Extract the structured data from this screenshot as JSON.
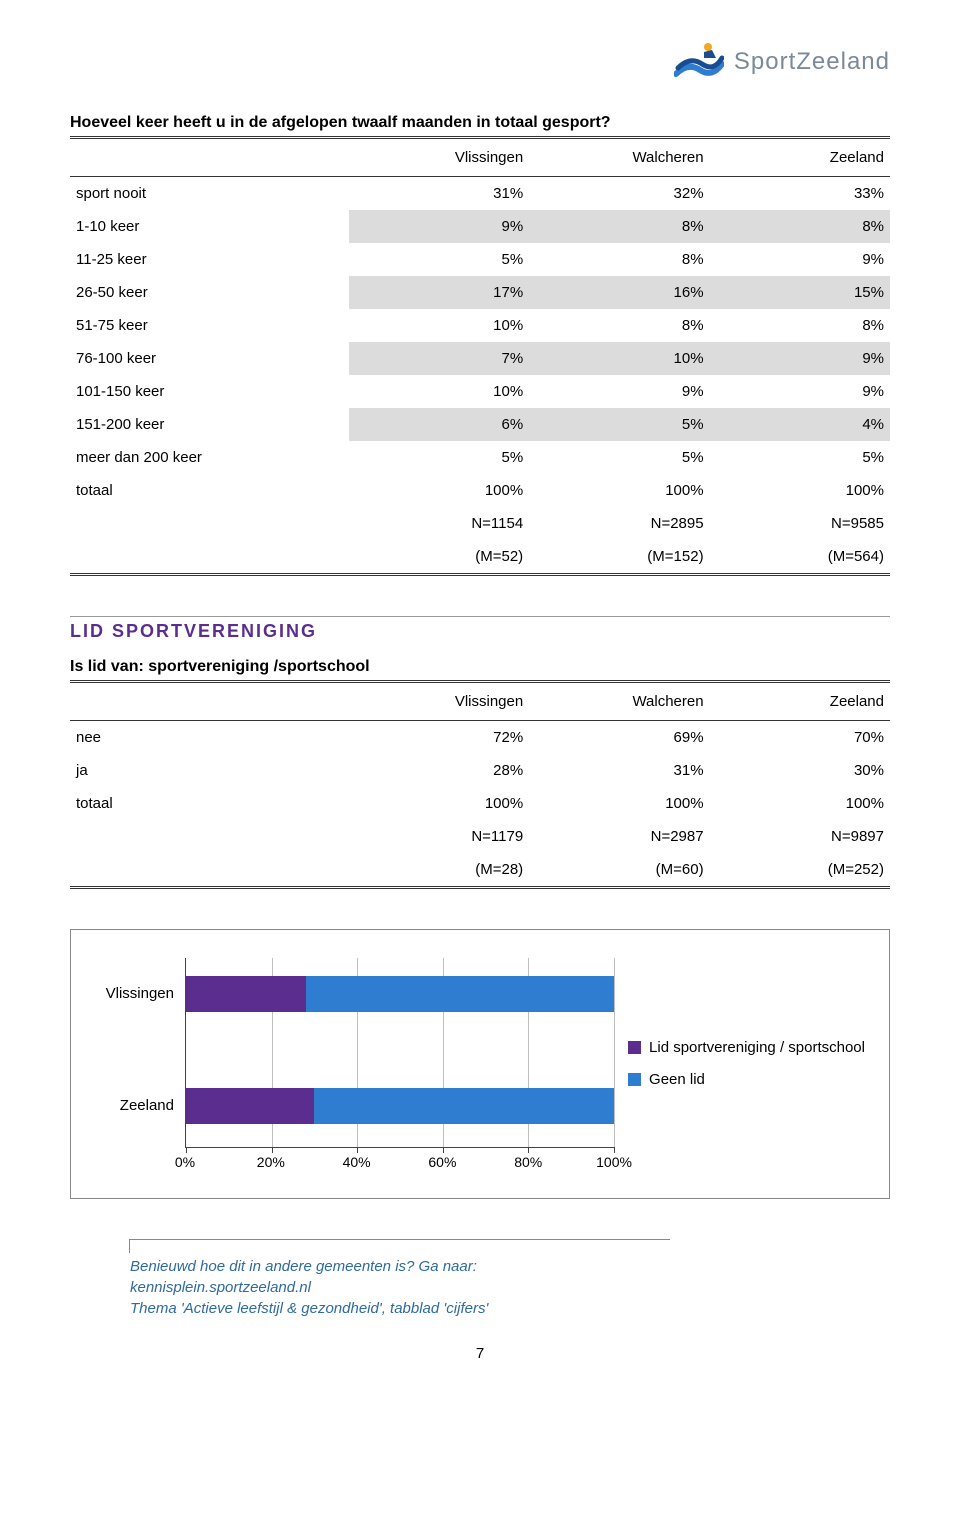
{
  "logo": {
    "text": "SportZeeland"
  },
  "pageNumber": "7",
  "table1": {
    "title": "Hoeveel keer heeft u in de afgelopen twaalf maanden in totaal gesport?",
    "headers": [
      "",
      "Vlissingen",
      "Walcheren",
      "Zeeland"
    ],
    "rows": [
      {
        "shaded": false,
        "cells": [
          "sport nooit",
          "31%",
          "32%",
          "33%"
        ]
      },
      {
        "shaded": true,
        "cells": [
          "1-10 keer",
          "9%",
          "8%",
          "8%"
        ]
      },
      {
        "shaded": false,
        "cells": [
          "11-25 keer",
          "5%",
          "8%",
          "9%"
        ]
      },
      {
        "shaded": true,
        "cells": [
          "26-50 keer",
          "17%",
          "16%",
          "15%"
        ]
      },
      {
        "shaded": false,
        "cells": [
          "51-75 keer",
          "10%",
          "8%",
          "8%"
        ]
      },
      {
        "shaded": true,
        "cells": [
          "76-100 keer",
          "7%",
          "10%",
          "9%"
        ]
      },
      {
        "shaded": false,
        "cells": [
          "101-150 keer",
          "10%",
          "9%",
          "9%"
        ]
      },
      {
        "shaded": true,
        "cells": [
          "151-200 keer",
          "6%",
          "5%",
          "4%"
        ]
      },
      {
        "shaded": false,
        "cells": [
          "meer dan 200 keer",
          "5%",
          "5%",
          "5%"
        ]
      },
      {
        "shaded": false,
        "cells": [
          "totaal",
          "100%",
          "100%",
          "100%"
        ]
      }
    ],
    "foot1": [
      "",
      "N=1154",
      "N=2895",
      "N=9585"
    ],
    "foot2": [
      "",
      "(M=52)",
      "(M=152)",
      "(M=564)"
    ]
  },
  "section": {
    "heading": "LID SPORTVERENIGING",
    "subtitle": "Is lid van: sportvereniging /sportschool"
  },
  "table2": {
    "headers": [
      "",
      "Vlissingen",
      "Walcheren",
      "Zeeland"
    ],
    "rows": [
      {
        "cells": [
          "nee",
          "72%",
          "69%",
          "70%"
        ]
      },
      {
        "cells": [
          "ja",
          "28%",
          "31%",
          "30%"
        ]
      },
      {
        "cells": [
          "totaal",
          "100%",
          "100%",
          "100%"
        ]
      }
    ],
    "foot1": [
      "",
      "N=1179",
      "N=2987",
      "N=9897"
    ],
    "foot2": [
      "",
      "(M=28)",
      "(M=60)",
      "(M=252)"
    ]
  },
  "chart": {
    "type": "stacked-hbar",
    "colors": {
      "seg1": "#5a2d8e",
      "seg2": "#2f7dd1",
      "grid": "#bfbfbf",
      "axis": "#444444"
    },
    "xlim": [
      0,
      100
    ],
    "xtick_step": 20,
    "xticks": [
      "0%",
      "20%",
      "40%",
      "60%",
      "80%",
      "100%"
    ],
    "bars": [
      {
        "label": "Vlissingen",
        "seg1": 28,
        "seg2": 72
      },
      {
        "label": "Zeeland",
        "seg1": 30,
        "seg2": 70
      }
    ],
    "legend": [
      {
        "color": "#5a2d8e",
        "label": "Lid sportvereniging / sportschool"
      },
      {
        "color": "#2f7dd1",
        "label": "Geen lid"
      }
    ]
  },
  "callout": {
    "line1": "Benieuwd hoe dit in andere gemeenten is? Ga naar:",
    "line2": "kennisplein.sportzeeland.nl",
    "line3": "Thema 'Actieve leefstijl & gezondheid', tabblad 'cijfers'"
  }
}
